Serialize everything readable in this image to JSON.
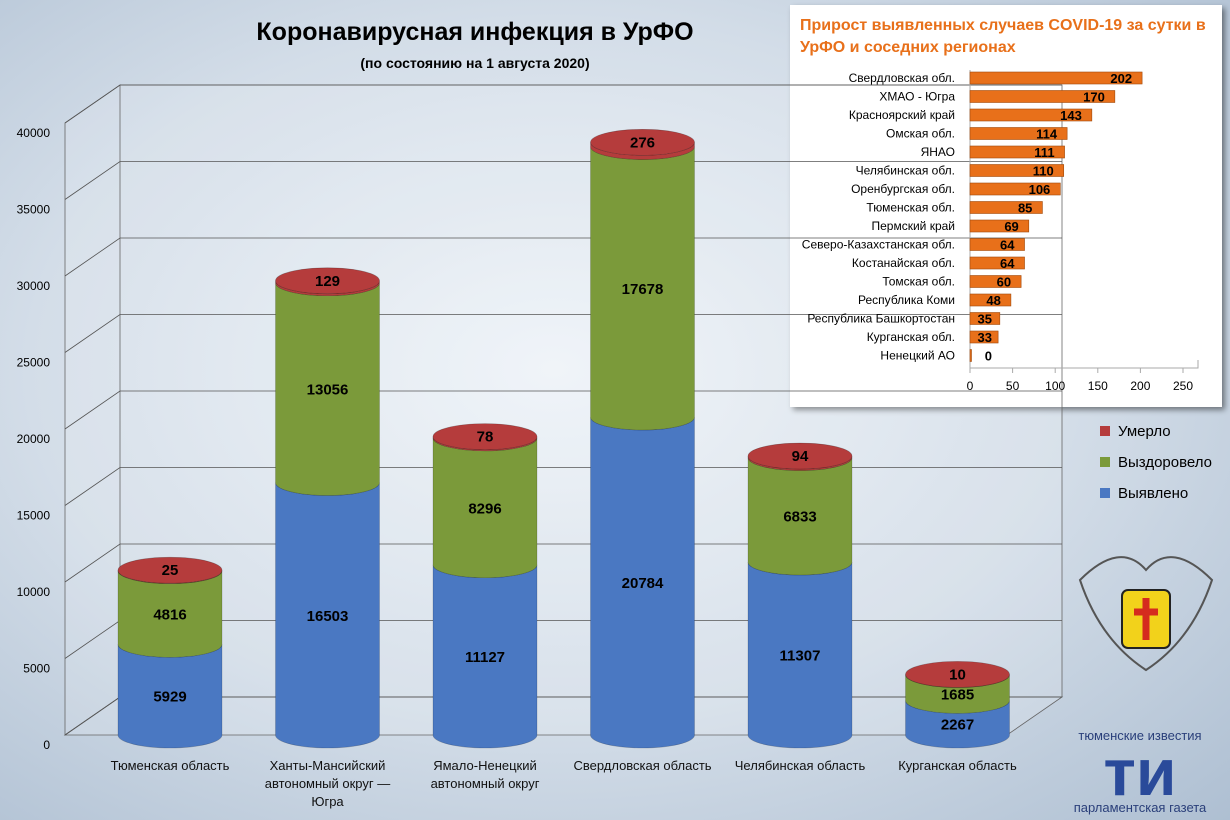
{
  "chart_data": [
    {
      "type": "stacked-cylinder",
      "title": "Коронавирусная инфекция в УрФО",
      "subtitle": "(по состоянию на 1 августа 2020)",
      "categories": [
        "Тюменская область",
        "Ханты-Мансийский автономный округ — Югра",
        "Ямало-Ненецкий автономный округ",
        "Свердловская область",
        "Челябинская область",
        "Курганская область"
      ],
      "series": [
        {
          "name": "Выявлено",
          "color": "#4a78c2",
          "values": [
            5929,
            16503,
            11127,
            20784,
            11307,
            2267
          ]
        },
        {
          "name": "Выздоровело",
          "color": "#7b9a3a",
          "values": [
            4816,
            13056,
            8296,
            17678,
            6833,
            1685
          ]
        },
        {
          "name": "Умерло",
          "color": "#b53c3c",
          "values": [
            25,
            129,
            78,
            276,
            94,
            10
          ]
        }
      ],
      "ylim": [
        0,
        40000
      ],
      "yticks": [
        0,
        5000,
        10000,
        15000,
        20000,
        25000,
        30000,
        35000,
        40000
      ],
      "grid": true
    },
    {
      "type": "hbar",
      "title": "Прирост выявленных случаев COVID-19 за сутки в УрФО и соседних регионах",
      "categories": [
        "Свердловская обл.",
        "ХМАО - Югра",
        "Красноярский край",
        "Омская обл.",
        "ЯНАО",
        "Челябинская обл.",
        "Оренбургская обл.",
        "Тюменская обл.",
        "Пермский край",
        "Северо-Казахстанская обл.",
        "Костанайская обл.",
        "Томская обл.",
        "Республика Коми",
        "Республика Башкортостан",
        "Курганская обл.",
        "Ненецкий АО"
      ],
      "values": [
        202,
        170,
        143,
        114,
        111,
        110,
        106,
        85,
        69,
        64,
        64,
        60,
        48,
        35,
        33,
        0
      ],
      "color": "#e8701a",
      "xlim": [
        0,
        250
      ],
      "xticks": [
        0,
        50,
        100,
        150,
        200,
        250
      ]
    }
  ],
  "logo": {
    "top": "тюменские известия",
    "mark": "ти",
    "bottom": "парламентская газета"
  }
}
